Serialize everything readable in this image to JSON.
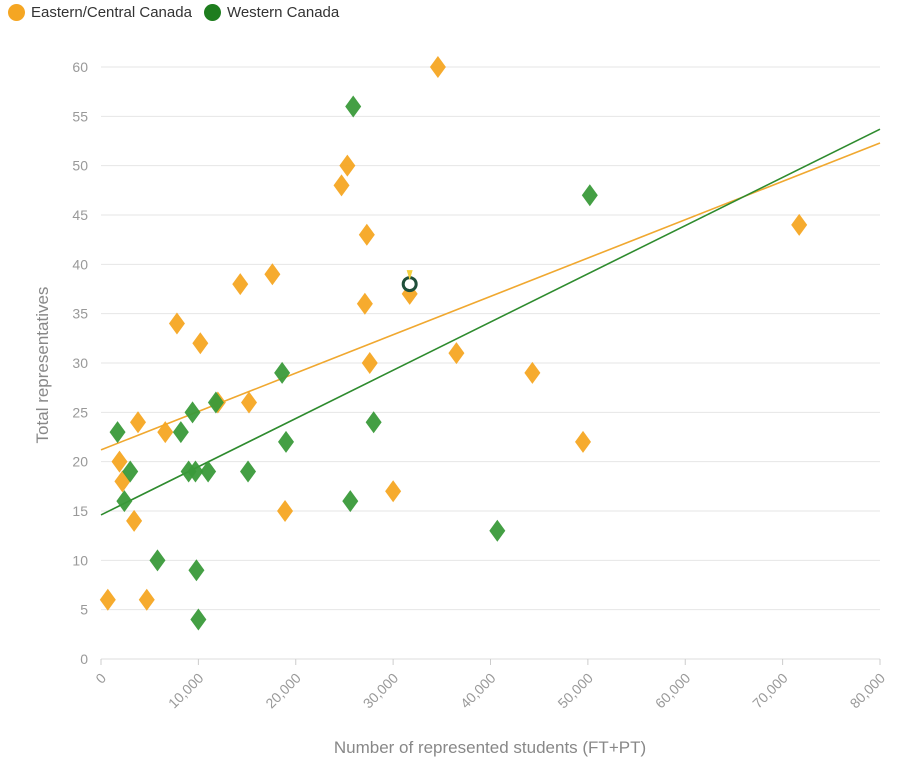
{
  "legend": {
    "items": [
      {
        "label": "Eastern/Central Canada",
        "color": "#f5a623"
      },
      {
        "label": "Western Canada",
        "color": "#1e7d1e"
      }
    ]
  },
  "chart_data": {
    "type": "scatter",
    "xlabel": "Number of represented students (FT+PT)",
    "ylabel": "Total representatives",
    "xlim": [
      0,
      80000
    ],
    "ylim": [
      0,
      60
    ],
    "x_ticks": [
      "0",
      "10,000",
      "20,000",
      "30,000",
      "40,000",
      "50,000",
      "60,000",
      "70,000",
      "80,000"
    ],
    "y_ticks": [
      "0",
      "5",
      "10",
      "15",
      "20",
      "25",
      "30",
      "35",
      "40",
      "45",
      "50",
      "55",
      "60"
    ],
    "grid": true,
    "legend_position": "top-left",
    "marker": "diamond",
    "series": [
      {
        "name": "Eastern/Central Canada",
        "color": "#f5a623",
        "points": [
          [
            700,
            6
          ],
          [
            1900,
            20
          ],
          [
            2200,
            18
          ],
          [
            3400,
            14
          ],
          [
            3800,
            24
          ],
          [
            4700,
            6
          ],
          [
            6600,
            23
          ],
          [
            7800,
            34
          ],
          [
            10200,
            32
          ],
          [
            12000,
            26
          ],
          [
            14300,
            38
          ],
          [
            15200,
            26
          ],
          [
            17600,
            39
          ],
          [
            18900,
            15
          ],
          [
            24700,
            48
          ],
          [
            25300,
            50
          ],
          [
            27100,
            36
          ],
          [
            27300,
            43
          ],
          [
            27600,
            30
          ],
          [
            30000,
            17
          ],
          [
            31700,
            37
          ],
          [
            34600,
            60
          ],
          [
            36500,
            31
          ],
          [
            44300,
            29
          ],
          [
            49500,
            22
          ],
          [
            71700,
            44
          ]
        ],
        "trendline": [
          [
            0,
            21.2
          ],
          [
            80000,
            52.3
          ]
        ]
      },
      {
        "name": "Western Canada",
        "color": "#3a9a3a",
        "points": [
          [
            1700,
            23
          ],
          [
            2400,
            16
          ],
          [
            3000,
            19
          ],
          [
            5800,
            10
          ],
          [
            8200,
            23
          ],
          [
            9000,
            19
          ],
          [
            9400,
            25
          ],
          [
            9800,
            9
          ],
          [
            9700,
            19
          ],
          [
            10000,
            4
          ],
          [
            11000,
            19
          ],
          [
            11800,
            26
          ],
          [
            15100,
            19
          ],
          [
            18600,
            29
          ],
          [
            19000,
            22
          ],
          [
            25600,
            16
          ],
          [
            25900,
            56
          ],
          [
            28000,
            24
          ],
          [
            40700,
            13
          ],
          [
            50200,
            47
          ]
        ],
        "trendline": [
          [
            0,
            14.6
          ],
          [
            80000,
            53.7
          ]
        ]
      }
    ],
    "annotation_point": {
      "x": 31700,
      "y": 38
    }
  }
}
